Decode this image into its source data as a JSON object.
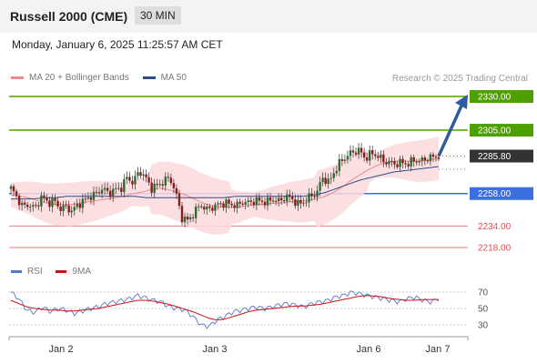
{
  "header": {
    "title": "Russell 2000 (CME)",
    "timeframe": "30 MIN",
    "datetime": "Monday, January 6, 2025 11:25:57 AM CET",
    "credit": "Research © 2025 Trading Central"
  },
  "legend_main": [
    {
      "label": "MA 20 + Bollinger Bands",
      "color": "#f08a8a"
    },
    {
      "label": "MA 50",
      "color": "#2a4f8f"
    }
  ],
  "legend_rsi": [
    {
      "label": "RSI",
      "color": "#5577cc"
    },
    {
      "label": "9MA",
      "color": "#d01010"
    }
  ],
  "colors": {
    "up": "#2f6b2f",
    "down": "#8b1a1a",
    "resistance": "#4ea000",
    "pivot": "#3b6fe0",
    "support": "#e05050",
    "arrow": "#2f5c9e",
    "band": "#fbd9dc"
  },
  "chart_data": [
    {
      "type": "candlestick",
      "title": "Russell 2000 (CME) 30 MIN",
      "x_ticks": [
        "Jan 2",
        "Jan 3",
        "Jan 6",
        "Jan 7"
      ],
      "ylim": [
        2210,
        2340
      ],
      "levels": [
        {
          "value": 2330.0,
          "label": "2330.00",
          "kind": "resistance"
        },
        {
          "value": 2305.0,
          "label": "2305.00",
          "kind": "resistance"
        },
        {
          "value": 2285.8,
          "label": "2285.80",
          "kind": "last"
        },
        {
          "value": 2258.0,
          "label": "2258.00",
          "kind": "pivot"
        },
        {
          "value": 2234.0,
          "label": "2234.00",
          "kind": "support"
        },
        {
          "value": 2218.0,
          "label": "2218.00",
          "kind": "support"
        }
      ],
      "close_path": [
        2262,
        2255,
        2248,
        2250,
        2247,
        2256,
        2251,
        2253,
        2247,
        2248,
        2245,
        2250,
        2253,
        2256,
        2258,
        2262,
        2258,
        2261,
        2262,
        2270,
        2266,
        2275,
        2270,
        2262,
        2264,
        2267,
        2270,
        2258,
        2240,
        2238,
        2244,
        2250,
        2246,
        2248,
        2250,
        2251,
        2250,
        2249,
        2252,
        2251,
        2253,
        2252,
        2252,
        2254,
        2252,
        2256,
        2254,
        2250,
        2252,
        2256,
        2258,
        2270,
        2266,
        2275,
        2282,
        2286,
        2289,
        2290,
        2284,
        2288,
        2286,
        2282,
        2281,
        2280,
        2281,
        2280,
        2283,
        2282,
        2284,
        2285,
        2286
      ],
      "ma20_path": [
        2257,
        2256,
        2255,
        2253,
        2251,
        2250,
        2250,
        2250,
        2251,
        2252,
        2253,
        2254,
        2255,
        2256,
        2258,
        2259,
        2261,
        2262,
        2261,
        2259,
        2257,
        2254,
        2251,
        2249,
        2248,
        2248,
        2248,
        2249,
        2250,
        2250,
        2251,
        2251,
        2252,
        2252,
        2253,
        2254,
        2256,
        2259,
        2263,
        2268,
        2272,
        2276,
        2279,
        2281,
        2282,
        2282,
        2282,
        2282,
        2283,
        2284
      ],
      "ma50_path": [
        2254,
        2254,
        2254,
        2255,
        2255,
        2256,
        2256,
        2256,
        2256,
        2256,
        2256,
        2256,
        2255,
        2255,
        2255,
        2255,
        2255,
        2255,
        2255,
        2255,
        2256,
        2256,
        2256,
        2256,
        2256,
        2256,
        2256,
        2257,
        2259,
        2262,
        2265,
        2268,
        2270,
        2272,
        2274,
        2275,
        2276,
        2277,
        2278
      ],
      "projection": {
        "from": 2285.8,
        "to": 2330.0
      }
    },
    {
      "type": "line",
      "title": "RSI",
      "ylim": [
        20,
        80
      ],
      "y_ticks": [
        70,
        50,
        30
      ],
      "series": [
        {
          "name": "RSI",
          "values": [
            70,
            62,
            48,
            45,
            52,
            46,
            50,
            48,
            44,
            47,
            50,
            52,
            56,
            58,
            60,
            62,
            66,
            63,
            60,
            58,
            52,
            50,
            48,
            40,
            30,
            28,
            36,
            40,
            46,
            48,
            50,
            52,
            50,
            52,
            55,
            56,
            54,
            52,
            56,
            58,
            60,
            64,
            66,
            70,
            68,
            66,
            64,
            62,
            60,
            58,
            62,
            64,
            60,
            58,
            62
          ]
        },
        {
          "name": "9MA",
          "values": [
            60,
            56,
            52,
            50,
            49,
            48,
            48,
            47,
            47,
            48,
            49,
            50,
            52,
            54,
            56,
            58,
            60,
            60,
            59,
            57,
            55,
            52,
            49,
            46,
            42,
            38,
            36,
            37,
            40,
            43,
            46,
            48,
            49,
            50,
            51,
            52,
            53,
            53,
            54,
            55,
            57,
            59,
            61,
            63,
            65,
            66,
            65,
            64,
            62,
            61,
            60,
            60,
            61,
            61,
            61
          ]
        }
      ]
    }
  ]
}
